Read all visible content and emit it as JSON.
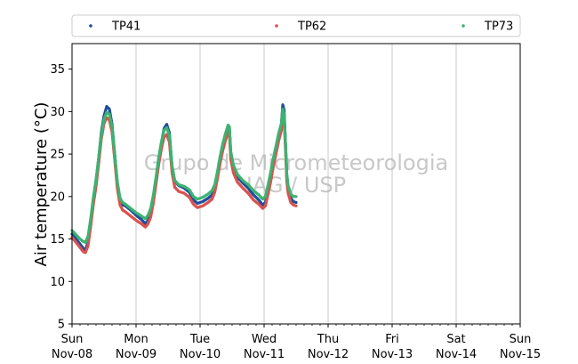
{
  "chart_data": {
    "type": "scatter",
    "title": "",
    "xlabel": "",
    "ylabel": "Air temperature (°C)",
    "ylim": [
      5,
      38
    ],
    "yticks": [
      5,
      10,
      15,
      20,
      25,
      30,
      35
    ],
    "xlim": [
      "2020-11-08 00:00",
      "2020-11-15 00:00"
    ],
    "xticks": [
      {
        "weekday": "Sun",
        "date": "Nov-08"
      },
      {
        "weekday": "Mon",
        "date": "Nov-09"
      },
      {
        "weekday": "Tue",
        "date": "Nov-10"
      },
      {
        "weekday": "Wed",
        "date": "Nov-11"
      },
      {
        "weekday": "Thu",
        "date": "Nov-12"
      },
      {
        "weekday": "Fri",
        "date": "Nov-13"
      },
      {
        "weekday": "Sat",
        "date": "Nov-14"
      },
      {
        "weekday": "Sun",
        "date": "Nov-15"
      }
    ],
    "grid": {
      "x": true,
      "y": false
    },
    "legend_position": "top",
    "watermark": [
      "Grupo de Micrometeorologia",
      "IAG / USP"
    ],
    "series": [
      {
        "name": "TP41",
        "color": "#1f4e9a",
        "points": [
          [
            "2020-11-08 00:00",
            15.6
          ],
          [
            "2020-11-08 01:30",
            15.0
          ],
          [
            "2020-11-08 03:00",
            14.4
          ],
          [
            "2020-11-08 04:15",
            13.9
          ],
          [
            "2020-11-08 05:00",
            13.7
          ],
          [
            "2020-11-08 06:00",
            14.6
          ],
          [
            "2020-11-08 07:00",
            17.0
          ],
          [
            "2020-11-08 08:00",
            19.6
          ],
          [
            "2020-11-08 09:00",
            21.8
          ],
          [
            "2020-11-08 10:00",
            24.5
          ],
          [
            "2020-11-08 11:00",
            27.6
          ],
          [
            "2020-11-08 12:00",
            29.5
          ],
          [
            "2020-11-08 13:00",
            30.6
          ],
          [
            "2020-11-08 14:00",
            30.3
          ],
          [
            "2020-11-08 15:00",
            28.5
          ],
          [
            "2020-11-08 16:00",
            25.0
          ],
          [
            "2020-11-08 17:00",
            21.5
          ],
          [
            "2020-11-08 18:00",
            19.6
          ],
          [
            "2020-11-08 19:00",
            19.0
          ],
          [
            "2020-11-08 20:00",
            18.9
          ],
          [
            "2020-11-08 22:00",
            18.4
          ],
          [
            "2020-11-09 00:00",
            17.8
          ],
          [
            "2020-11-09 02:00",
            17.3
          ],
          [
            "2020-11-09 03:30",
            16.8
          ],
          [
            "2020-11-09 04:30",
            17.2
          ],
          [
            "2020-11-09 05:30",
            18.0
          ],
          [
            "2020-11-09 06:30",
            19.8
          ],
          [
            "2020-11-09 07:30",
            22.0
          ],
          [
            "2020-11-09 08:30",
            24.5
          ],
          [
            "2020-11-09 09:30",
            26.3
          ],
          [
            "2020-11-09 10:30",
            28.0
          ],
          [
            "2020-11-09 11:30",
            28.5
          ],
          [
            "2020-11-09 12:30",
            27.5
          ],
          [
            "2020-11-09 13:30",
            23.5
          ],
          [
            "2020-11-09 14:30",
            21.8
          ],
          [
            "2020-11-09 16:00",
            21.3
          ],
          [
            "2020-11-09 18:00",
            21.0
          ],
          [
            "2020-11-09 20:00",
            20.5
          ],
          [
            "2020-11-09 21:30",
            19.6
          ],
          [
            "2020-11-09 23:00",
            19.2
          ],
          [
            "2020-11-10 01:00",
            19.4
          ],
          [
            "2020-11-10 03:00",
            19.8
          ],
          [
            "2020-11-10 04:30",
            20.2
          ],
          [
            "2020-11-10 05:30",
            21.0
          ],
          [
            "2020-11-10 06:30",
            22.6
          ],
          [
            "2020-11-10 07:30",
            24.5
          ],
          [
            "2020-11-10 08:30",
            26.0
          ],
          [
            "2020-11-10 09:30",
            27.3
          ],
          [
            "2020-11-10 10:30",
            28.3
          ],
          [
            "2020-11-10 11:00",
            28.1
          ],
          [
            "2020-11-10 11:30",
            25.0
          ],
          [
            "2020-11-10 12:30",
            23.4
          ],
          [
            "2020-11-10 14:00",
            22.3
          ],
          [
            "2020-11-10 16:00",
            21.6
          ],
          [
            "2020-11-10 18:00",
            21.0
          ],
          [
            "2020-11-10 20:00",
            20.2
          ],
          [
            "2020-11-10 22:00",
            19.6
          ],
          [
            "2020-11-10 23:30",
            19.0
          ],
          [
            "2020-11-11 00:30",
            19.3
          ],
          [
            "2020-11-11 01:30",
            20.8
          ],
          [
            "2020-11-11 02:30",
            22.4
          ],
          [
            "2020-11-11 03:30",
            24.2
          ],
          [
            "2020-11-11 04:30",
            25.8
          ],
          [
            "2020-11-11 05:30",
            27.4
          ],
          [
            "2020-11-11 06:30",
            28.6
          ],
          [
            "2020-11-11 07:00",
            30.8
          ],
          [
            "2020-11-11 07:30",
            30.2
          ],
          [
            "2020-11-11 08:00",
            26.5
          ],
          [
            "2020-11-11 08:30",
            22.5
          ],
          [
            "2020-11-11 09:00",
            21.0
          ],
          [
            "2020-11-11 10:00",
            19.8
          ],
          [
            "2020-11-11 11:00",
            19.4
          ],
          [
            "2020-11-11 12:00",
            19.3
          ]
        ]
      },
      {
        "name": "TP62",
        "color": "#d9534f",
        "points": [
          [
            "2020-11-08 00:00",
            15.2
          ],
          [
            "2020-11-08 01:30",
            14.6
          ],
          [
            "2020-11-08 03:00",
            14.0
          ],
          [
            "2020-11-08 04:15",
            13.5
          ],
          [
            "2020-11-08 05:00",
            13.4
          ],
          [
            "2020-11-08 06:00",
            14.2
          ],
          [
            "2020-11-08 07:00",
            16.5
          ],
          [
            "2020-11-08 08:00",
            19.1
          ],
          [
            "2020-11-08 09:00",
            21.2
          ],
          [
            "2020-11-08 10:00",
            23.9
          ],
          [
            "2020-11-08 11:00",
            26.8
          ],
          [
            "2020-11-08 12:00",
            28.6
          ],
          [
            "2020-11-08 13:00",
            29.3
          ],
          [
            "2020-11-08 14:00",
            29.0
          ],
          [
            "2020-11-08 15:00",
            27.6
          ],
          [
            "2020-11-08 16:00",
            24.3
          ],
          [
            "2020-11-08 17:00",
            20.9
          ],
          [
            "2020-11-08 18:00",
            19.0
          ],
          [
            "2020-11-08 19:00",
            18.4
          ],
          [
            "2020-11-08 20:00",
            18.2
          ],
          [
            "2020-11-08 22:00",
            17.7
          ],
          [
            "2020-11-09 00:00",
            17.2
          ],
          [
            "2020-11-09 02:00",
            16.8
          ],
          [
            "2020-11-09 03:30",
            16.4
          ],
          [
            "2020-11-09 04:30",
            16.8
          ],
          [
            "2020-11-09 05:30",
            17.6
          ],
          [
            "2020-11-09 06:30",
            19.3
          ],
          [
            "2020-11-09 07:30",
            21.5
          ],
          [
            "2020-11-09 08:30",
            23.8
          ],
          [
            "2020-11-09 09:30",
            25.6
          ],
          [
            "2020-11-09 10:30",
            27.0
          ],
          [
            "2020-11-09 11:30",
            27.3
          ],
          [
            "2020-11-09 12:30",
            26.4
          ],
          [
            "2020-11-09 13:30",
            22.8
          ],
          [
            "2020-11-09 14:30",
            21.1
          ],
          [
            "2020-11-09 16:00",
            20.6
          ],
          [
            "2020-11-09 18:00",
            20.4
          ],
          [
            "2020-11-09 20:00",
            19.9
          ],
          [
            "2020-11-09 21:30",
            19.1
          ],
          [
            "2020-11-09 23:00",
            18.7
          ],
          [
            "2020-11-10 01:00",
            18.9
          ],
          [
            "2020-11-10 03:00",
            19.3
          ],
          [
            "2020-11-10 04:30",
            19.7
          ],
          [
            "2020-11-10 05:30",
            20.5
          ],
          [
            "2020-11-10 06:30",
            22.1
          ],
          [
            "2020-11-10 07:30",
            23.9
          ],
          [
            "2020-11-10 08:30",
            25.4
          ],
          [
            "2020-11-10 09:30",
            26.6
          ],
          [
            "2020-11-10 10:30",
            27.5
          ],
          [
            "2020-11-10 11:00",
            27.3
          ],
          [
            "2020-11-10 11:30",
            24.4
          ],
          [
            "2020-11-10 12:30",
            22.8
          ],
          [
            "2020-11-10 14:00",
            21.7
          ],
          [
            "2020-11-10 16:00",
            21.0
          ],
          [
            "2020-11-10 18:00",
            20.4
          ],
          [
            "2020-11-10 20:00",
            19.6
          ],
          [
            "2020-11-10 22:00",
            19.1
          ],
          [
            "2020-11-10 23:30",
            18.6
          ],
          [
            "2020-11-11 00:30",
            18.9
          ],
          [
            "2020-11-11 01:30",
            20.3
          ],
          [
            "2020-11-11 02:30",
            21.8
          ],
          [
            "2020-11-11 03:30",
            23.6
          ],
          [
            "2020-11-11 04:30",
            25.1
          ],
          [
            "2020-11-11 05:30",
            26.6
          ],
          [
            "2020-11-11 06:30",
            27.8
          ],
          [
            "2020-11-11 07:00",
            29.6
          ],
          [
            "2020-11-11 07:30",
            29.0
          ],
          [
            "2020-11-11 08:00",
            25.6
          ],
          [
            "2020-11-11 08:30",
            21.8
          ],
          [
            "2020-11-11 09:00",
            20.4
          ],
          [
            "2020-11-11 10:00",
            19.3
          ],
          [
            "2020-11-11 11:00",
            19.0
          ],
          [
            "2020-11-11 12:00",
            18.9
          ]
        ]
      },
      {
        "name": "TP73",
        "color": "#3cb371",
        "points": [
          [
            "2020-11-08 00:00",
            16.0
          ],
          [
            "2020-11-08 01:30",
            15.5
          ],
          [
            "2020-11-08 03:00",
            15.0
          ],
          [
            "2020-11-08 04:15",
            14.7
          ],
          [
            "2020-11-08 05:00",
            14.6
          ],
          [
            "2020-11-08 06:00",
            15.3
          ],
          [
            "2020-11-08 07:00",
            17.4
          ],
          [
            "2020-11-08 08:00",
            19.9
          ],
          [
            "2020-11-08 09:00",
            22.0
          ],
          [
            "2020-11-08 10:00",
            24.6
          ],
          [
            "2020-11-08 11:00",
            27.3
          ],
          [
            "2020-11-08 12:00",
            29.1
          ],
          [
            "2020-11-08 13:00",
            29.9
          ],
          [
            "2020-11-08 14:00",
            29.7
          ],
          [
            "2020-11-08 15:00",
            28.2
          ],
          [
            "2020-11-08 16:00",
            24.9
          ],
          [
            "2020-11-08 17:00",
            21.7
          ],
          [
            "2020-11-08 18:00",
            19.8
          ],
          [
            "2020-11-08 19:00",
            19.3
          ],
          [
            "2020-11-08 20:00",
            19.1
          ],
          [
            "2020-11-08 22:00",
            18.6
          ],
          [
            "2020-11-09 00:00",
            18.1
          ],
          [
            "2020-11-09 02:00",
            17.7
          ],
          [
            "2020-11-09 03:30",
            17.4
          ],
          [
            "2020-11-09 04:30",
            17.8
          ],
          [
            "2020-11-09 05:30",
            18.6
          ],
          [
            "2020-11-09 06:30",
            20.2
          ],
          [
            "2020-11-09 07:30",
            22.3
          ],
          [
            "2020-11-09 08:30",
            24.6
          ],
          [
            "2020-11-09 09:30",
            26.4
          ],
          [
            "2020-11-09 10:30",
            27.8
          ],
          [
            "2020-11-09 11:30",
            28.1
          ],
          [
            "2020-11-09 12:30",
            27.2
          ],
          [
            "2020-11-09 13:30",
            23.6
          ],
          [
            "2020-11-09 14:30",
            21.9
          ],
          [
            "2020-11-09 16:00",
            21.4
          ],
          [
            "2020-11-09 18:00",
            21.2
          ],
          [
            "2020-11-09 20:00",
            20.8
          ],
          [
            "2020-11-09 21:30",
            20.0
          ],
          [
            "2020-11-09 23:00",
            19.7
          ],
          [
            "2020-11-10 01:00",
            19.9
          ],
          [
            "2020-11-10 03:00",
            20.3
          ],
          [
            "2020-11-10 04:30",
            20.7
          ],
          [
            "2020-11-10 05:30",
            21.4
          ],
          [
            "2020-11-10 06:30",
            22.9
          ],
          [
            "2020-11-10 07:30",
            24.7
          ],
          [
            "2020-11-10 08:30",
            26.2
          ],
          [
            "2020-11-10 09:30",
            27.4
          ],
          [
            "2020-11-10 10:30",
            28.4
          ],
          [
            "2020-11-10 11:00",
            28.2
          ],
          [
            "2020-11-10 11:30",
            25.3
          ],
          [
            "2020-11-10 12:30",
            23.7
          ],
          [
            "2020-11-10 14:00",
            22.6
          ],
          [
            "2020-11-10 16:00",
            21.9
          ],
          [
            "2020-11-10 18:00",
            21.4
          ],
          [
            "2020-11-10 20:00",
            20.7
          ],
          [
            "2020-11-10 22:00",
            20.2
          ],
          [
            "2020-11-10 23:30",
            19.7
          ],
          [
            "2020-11-11 00:30",
            20.0
          ],
          [
            "2020-11-11 01:30",
            21.4
          ],
          [
            "2020-11-11 02:30",
            22.9
          ],
          [
            "2020-11-11 03:30",
            24.6
          ],
          [
            "2020-11-11 04:30",
            26.0
          ],
          [
            "2020-11-11 05:30",
            27.5
          ],
          [
            "2020-11-11 06:30",
            28.6
          ],
          [
            "2020-11-11 07:00",
            30.3
          ],
          [
            "2020-11-11 07:30",
            29.7
          ],
          [
            "2020-11-11 08:00",
            26.4
          ],
          [
            "2020-11-11 08:30",
            22.7
          ],
          [
            "2020-11-11 09:00",
            21.3
          ],
          [
            "2020-11-11 10:00",
            20.3
          ],
          [
            "2020-11-11 11:00",
            20.0
          ],
          [
            "2020-11-11 12:00",
            20.0
          ]
        ]
      }
    ]
  }
}
